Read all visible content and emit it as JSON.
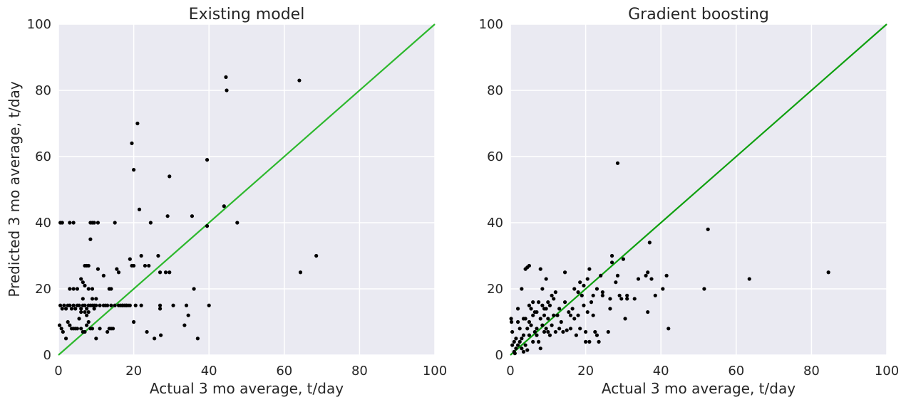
{
  "chart_data": [
    {
      "type": "scatter",
      "title": "Existing model",
      "xlabel": "Actual 3 mo average, t/day",
      "ylabel": "Predicted 3 mo average, t/day",
      "xlim": [
        0,
        100
      ],
      "ylim": [
        0,
        100
      ],
      "xticks": [
        "0",
        "20",
        "40",
        "60",
        "80",
        "100"
      ],
      "yticks": [
        "0",
        "20",
        "40",
        "60",
        "80",
        "100"
      ],
      "grid": true,
      "background": "#EAEAF2",
      "point_color": "#000000",
      "reference_line": {
        "from": [
          0,
          0
        ],
        "to": [
          100,
          100
        ],
        "color": "#2DB82D"
      },
      "points": [
        [
          0.5,
          40
        ],
        [
          1,
          40
        ],
        [
          3,
          40
        ],
        [
          4,
          40
        ],
        [
          0.3,
          9
        ],
        [
          0.8,
          8
        ],
        [
          1.2,
          7
        ],
        [
          2,
          5
        ],
        [
          0.5,
          15
        ],
        [
          1.5,
          15
        ],
        [
          2.5,
          15
        ],
        [
          3,
          15
        ],
        [
          3.5,
          14
        ],
        [
          4,
          15
        ],
        [
          4.5,
          14
        ],
        [
          5,
          15
        ],
        [
          5.5,
          15
        ],
        [
          6,
          14
        ],
        [
          6.5,
          15
        ],
        [
          7,
          15
        ],
        [
          7.5,
          14
        ],
        [
          8,
          15
        ],
        [
          8.5,
          15
        ],
        [
          9,
          15
        ],
        [
          9.5,
          15
        ],
        [
          10,
          15
        ],
        [
          11,
          15
        ],
        [
          12,
          15
        ],
        [
          13,
          15
        ],
        [
          14,
          15
        ],
        [
          15,
          15
        ],
        [
          16,
          15
        ],
        [
          17,
          15
        ],
        [
          18,
          15
        ],
        [
          19,
          15
        ],
        [
          1,
          14
        ],
        [
          2,
          14
        ],
        [
          2.5,
          10
        ],
        [
          3,
          9
        ],
        [
          3.5,
          8
        ],
        [
          4,
          8
        ],
        [
          4.5,
          8
        ],
        [
          5,
          8
        ],
        [
          5.5,
          11
        ],
        [
          6,
          8
        ],
        [
          6.5,
          7
        ],
        [
          7,
          7
        ],
        [
          7.5,
          9
        ],
        [
          8,
          10
        ],
        [
          8.5,
          8
        ],
        [
          9,
          8
        ],
        [
          3,
          20
        ],
        [
          4,
          20
        ],
        [
          5,
          20
        ],
        [
          6,
          23
        ],
        [
          6.5,
          22
        ],
        [
          7,
          27
        ],
        [
          7.5,
          27
        ],
        [
          8,
          27
        ],
        [
          8.5,
          40
        ],
        [
          9,
          40
        ],
        [
          9.5,
          40
        ],
        [
          10.5,
          40
        ],
        [
          8.5,
          35
        ],
        [
          8,
          20
        ],
        [
          9,
          17
        ],
        [
          10,
          17
        ],
        [
          9,
          20
        ],
        [
          10.5,
          26
        ],
        [
          7,
          21
        ],
        [
          6.5,
          17
        ],
        [
          7,
          13
        ],
        [
          7.5,
          12
        ],
        [
          8,
          13
        ],
        [
          6,
          13
        ],
        [
          9.5,
          14
        ],
        [
          10,
          5
        ],
        [
          11,
          8
        ],
        [
          12,
          24
        ],
        [
          12.5,
          15
        ],
        [
          13,
          7
        ],
        [
          13.5,
          8
        ],
        [
          14,
          8
        ],
        [
          14.5,
          8
        ],
        [
          15,
          40
        ],
        [
          15.5,
          26
        ],
        [
          16,
          25
        ],
        [
          13.5,
          20
        ],
        [
          14,
          20
        ],
        [
          16.5,
          15
        ],
        [
          17,
          15
        ],
        [
          17.5,
          15
        ],
        [
          18,
          15
        ],
        [
          18.5,
          15
        ],
        [
          19,
          29
        ],
        [
          19.5,
          64
        ],
        [
          19.5,
          27
        ],
        [
          20,
          27
        ],
        [
          20,
          10
        ],
        [
          20,
          56
        ],
        [
          20.5,
          15
        ],
        [
          21,
          70
        ],
        [
          21.5,
          44
        ],
        [
          22,
          30
        ],
        [
          22,
          15
        ],
        [
          23,
          27
        ],
        [
          23.5,
          7
        ],
        [
          24,
          27
        ],
        [
          24.5,
          40
        ],
        [
          25.5,
          5
        ],
        [
          26.5,
          30
        ],
        [
          27,
          25
        ],
        [
          27,
          15
        ],
        [
          27,
          14
        ],
        [
          27.2,
          6
        ],
        [
          28.5,
          25
        ],
        [
          29,
          42
        ],
        [
          29.5,
          54
        ],
        [
          29.5,
          25
        ],
        [
          30.5,
          15
        ],
        [
          33.5,
          9
        ],
        [
          34,
          15
        ],
        [
          34.5,
          12
        ],
        [
          35.5,
          42
        ],
        [
          36,
          20
        ],
        [
          37,
          5
        ],
        [
          39.5,
          39
        ],
        [
          39.5,
          59
        ],
        [
          40,
          15
        ],
        [
          44,
          45
        ],
        [
          44.5,
          84
        ],
        [
          44.7,
          80
        ],
        [
          47.5,
          40
        ],
        [
          64,
          83
        ],
        [
          64.3,
          25
        ],
        [
          68.5,
          30
        ]
      ]
    },
    {
      "type": "scatter",
      "title": "Gradient boosting",
      "xlabel": "Actual 3 mo average, t/day",
      "ylabel": "",
      "xlim": [
        0,
        100
      ],
      "ylim": [
        0,
        100
      ],
      "xticks": [
        "0",
        "20",
        "40",
        "60",
        "80",
        "100"
      ],
      "yticks": [
        "0",
        "20",
        "40",
        "60",
        "80",
        "100"
      ],
      "grid": true,
      "background": "#EAEAF2",
      "point_color": "#000000",
      "reference_line": {
        "from": [
          0,
          0
        ],
        "to": [
          100,
          100
        ],
        "color": "#0FA00F"
      },
      "points": [
        [
          0.2,
          11
        ],
        [
          0.3,
          10
        ],
        [
          0.5,
          7
        ],
        [
          0.5,
          3
        ],
        [
          1,
          4
        ],
        [
          1,
          1
        ],
        [
          1.2,
          0.5
        ],
        [
          1.5,
          2
        ],
        [
          1.5,
          5
        ],
        [
          2,
          14
        ],
        [
          2,
          10
        ],
        [
          2,
          3
        ],
        [
          2.5,
          4
        ],
        [
          2.5,
          8
        ],
        [
          3,
          20
        ],
        [
          3,
          5
        ],
        [
          3,
          2
        ],
        [
          3.5,
          11
        ],
        [
          3.5,
          6
        ],
        [
          3.5,
          1
        ],
        [
          4,
          11
        ],
        [
          4,
          26
        ],
        [
          4,
          3
        ],
        [
          4.5,
          26.5
        ],
        [
          4.5,
          8
        ],
        [
          4.5,
          1.5
        ],
        [
          5,
          27
        ],
        [
          5,
          15
        ],
        [
          5,
          10
        ],
        [
          5,
          6
        ],
        [
          5.5,
          14
        ],
        [
          5.5,
          9
        ],
        [
          6,
          16
        ],
        [
          6,
          12
        ],
        [
          6,
          4
        ],
        [
          6.5,
          13
        ],
        [
          6.5,
          7
        ],
        [
          7,
          13
        ],
        [
          7,
          8
        ],
        [
          7,
          6
        ],
        [
          7.5,
          16
        ],
        [
          7.5,
          4
        ],
        [
          8,
          26
        ],
        [
          8,
          11
        ],
        [
          8,
          2
        ],
        [
          8.5,
          20
        ],
        [
          8.5,
          15
        ],
        [
          8.5,
          9
        ],
        [
          9,
          14
        ],
        [
          9,
          12
        ],
        [
          9,
          7
        ],
        [
          9.5,
          23
        ],
        [
          9.5,
          14
        ],
        [
          9.5,
          8
        ],
        [
          10,
          16
        ],
        [
          10,
          11
        ],
        [
          10,
          7
        ],
        [
          10.5,
          15
        ],
        [
          10.5,
          6
        ],
        [
          11,
          18
        ],
        [
          11,
          9
        ],
        [
          11.5,
          12
        ],
        [
          11.5,
          17
        ],
        [
          12,
          19
        ],
        [
          12,
          7
        ],
        [
          12.5,
          12
        ],
        [
          13,
          14
        ],
        [
          13,
          8
        ],
        [
          13.5,
          10
        ],
        [
          14,
          7
        ],
        [
          14.5,
          25
        ],
        [
          14.5,
          16
        ],
        [
          15,
          7.5
        ],
        [
          15.5,
          13
        ],
        [
          16,
          12
        ],
        [
          16,
          8
        ],
        [
          16.5,
          14
        ],
        [
          17,
          20
        ],
        [
          17,
          11
        ],
        [
          17.5,
          6
        ],
        [
          18,
          19
        ],
        [
          18,
          12
        ],
        [
          18.5,
          22
        ],
        [
          18.5,
          8
        ],
        [
          19,
          18
        ],
        [
          19.5,
          21
        ],
        [
          19.5,
          15
        ],
        [
          20,
          7
        ],
        [
          20,
          4
        ],
        [
          20.5,
          23
        ],
        [
          20.5,
          13
        ],
        [
          21,
          26
        ],
        [
          21,
          4
        ],
        [
          21.5,
          16
        ],
        [
          22,
          12
        ],
        [
          22,
          18
        ],
        [
          22.5,
          7
        ],
        [
          23,
          20
        ],
        [
          23,
          6
        ],
        [
          23.5,
          4
        ],
        [
          24,
          24
        ],
        [
          24.5,
          18
        ],
        [
          24.5,
          19
        ],
        [
          26,
          7
        ],
        [
          26.5,
          14
        ],
        [
          26.5,
          17
        ],
        [
          27,
          28
        ],
        [
          27,
          30
        ],
        [
          28,
          22
        ],
        [
          28.5,
          58
        ],
        [
          28.5,
          24
        ],
        [
          29,
          18
        ],
        [
          29.5,
          17
        ],
        [
          30,
          29
        ],
        [
          30.5,
          11
        ],
        [
          31,
          18
        ],
        [
          31,
          17
        ],
        [
          33,
          17
        ],
        [
          34,
          23
        ],
        [
          36,
          24
        ],
        [
          36.5,
          25
        ],
        [
          36.5,
          13
        ],
        [
          37,
          34
        ],
        [
          37.5,
          23
        ],
        [
          38.5,
          18
        ],
        [
          40.5,
          20
        ],
        [
          41.5,
          24
        ],
        [
          42,
          8
        ],
        [
          51.5,
          20
        ],
        [
          52.5,
          38
        ],
        [
          63.5,
          23
        ],
        [
          84.5,
          25
        ]
      ]
    }
  ]
}
